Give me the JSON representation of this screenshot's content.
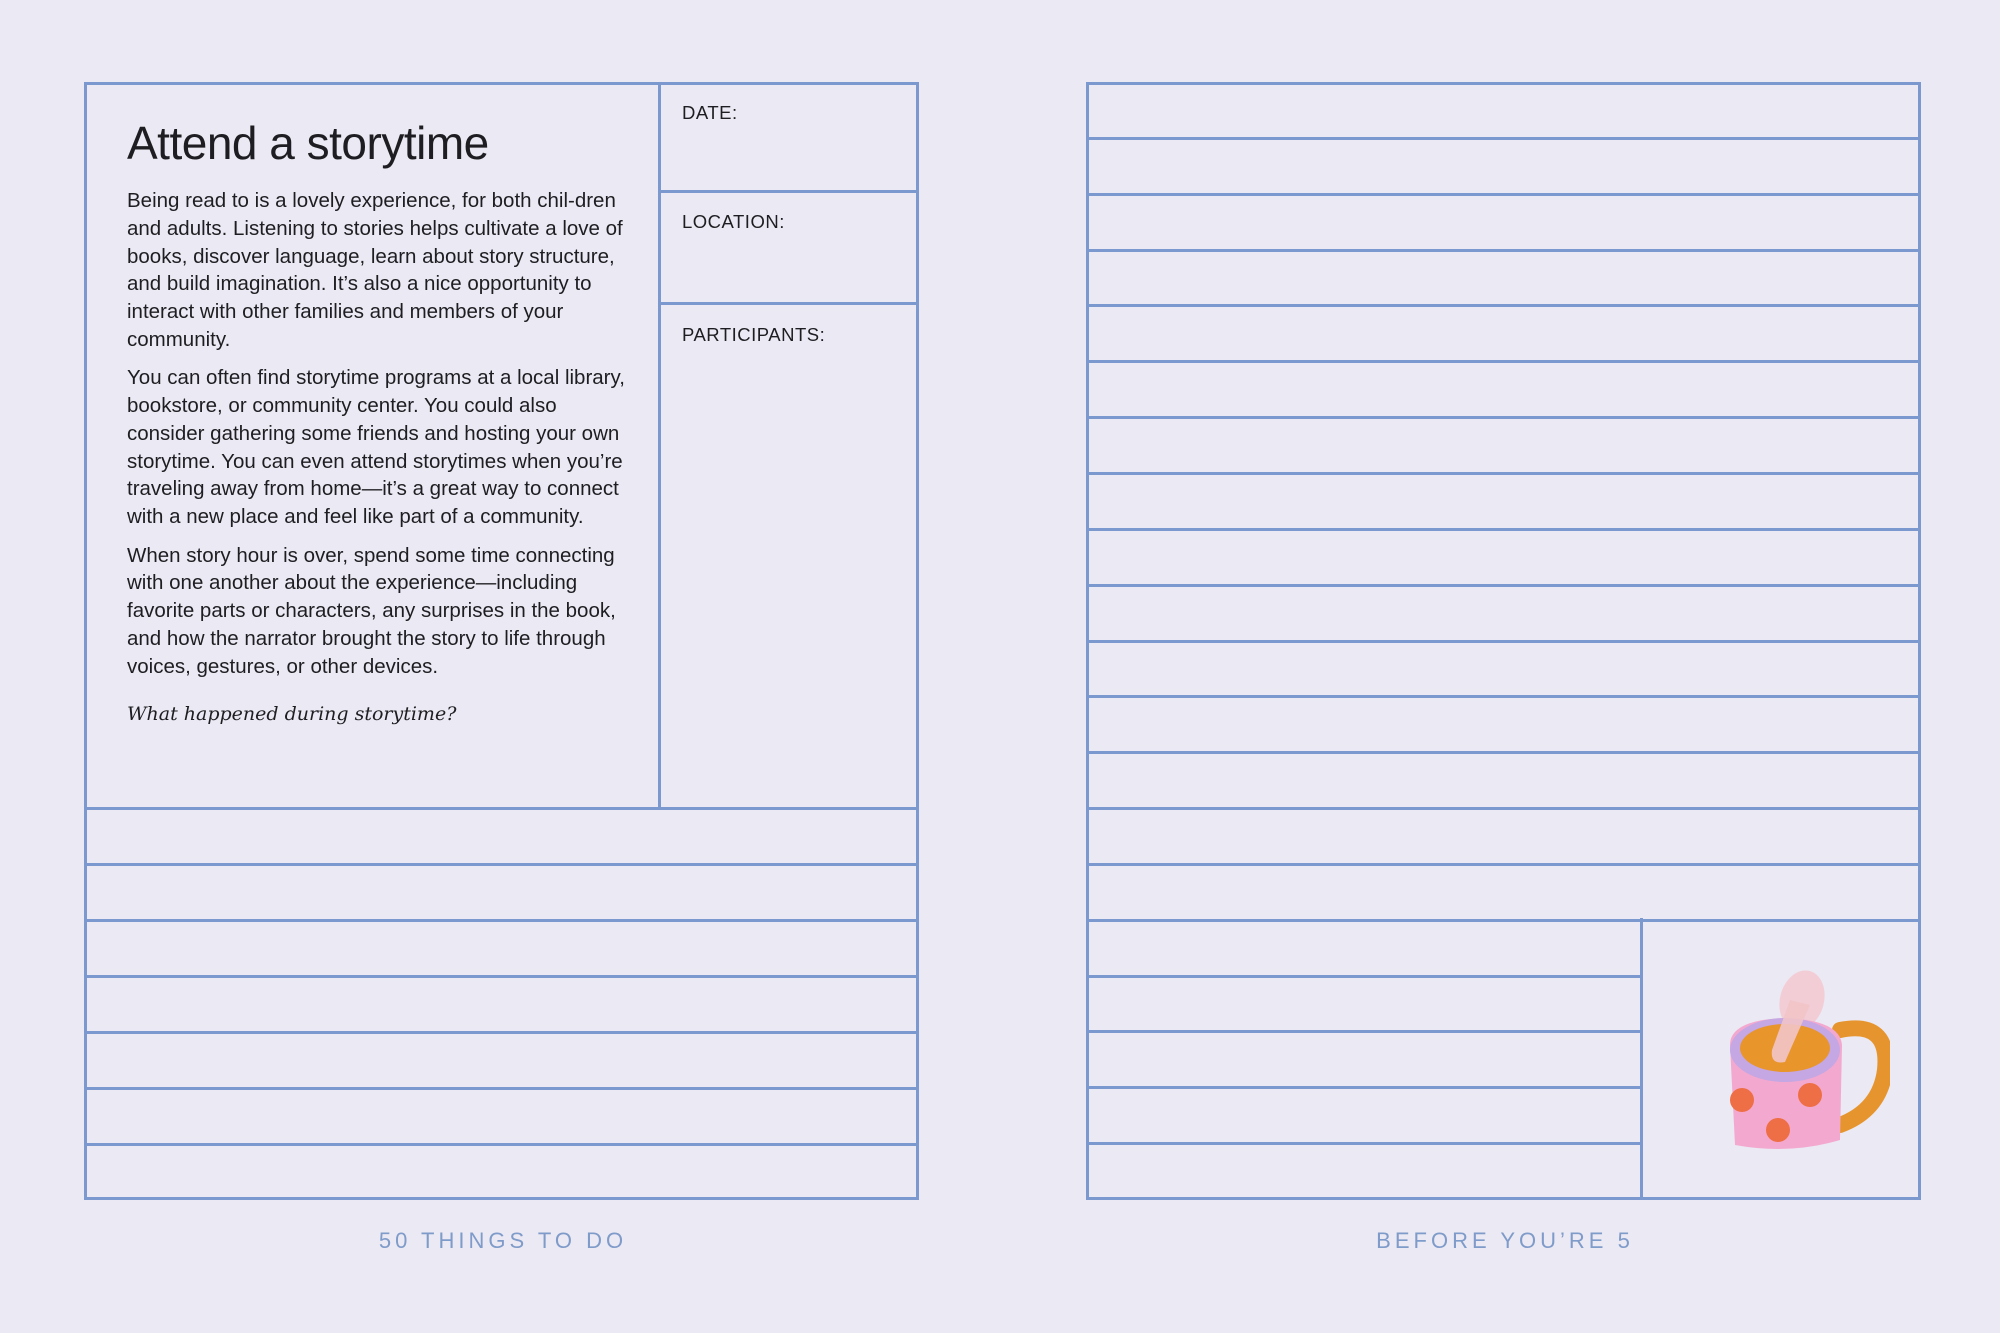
{
  "left_page": {
    "title": "Attend a storytime",
    "paragraphs": [
      "Being read to is a lovely experience, for both chil-dren and adults. Listening to stories helps cultivate a love of books, discover language, learn about story structure, and build imagination. It’s also a nice opportunity to interact with other families and members of your community.",
      "You can often find storytime programs at a local library, bookstore, or community center. You could also consider gathering some friends and hosting your own storytime. You can even attend storytimes when you’re traveling away from home—it’s a great way to connect with a new place and feel like part of a community.",
      "When story hour is over, spend some time connecting with one another about the experience—including favorite parts or characters, any surprises in the book, and how the narrator brought the story to life through voices, gestures, or other devices."
    ],
    "prompt": "What happened during storytime?",
    "fields": {
      "date": "DATE:",
      "location": "LOCATION:",
      "participants": "PARTICIPANTS:"
    },
    "footer": "50 THINGS TO DO"
  },
  "right_page": {
    "footer": "BEFORE YOU’RE 5",
    "illustration": "mug-with-spoon-illustration"
  },
  "colors": {
    "background": "#ebe9f3",
    "rule_lines": "#7b98cf",
    "footer_text": "#7f9bc9"
  }
}
